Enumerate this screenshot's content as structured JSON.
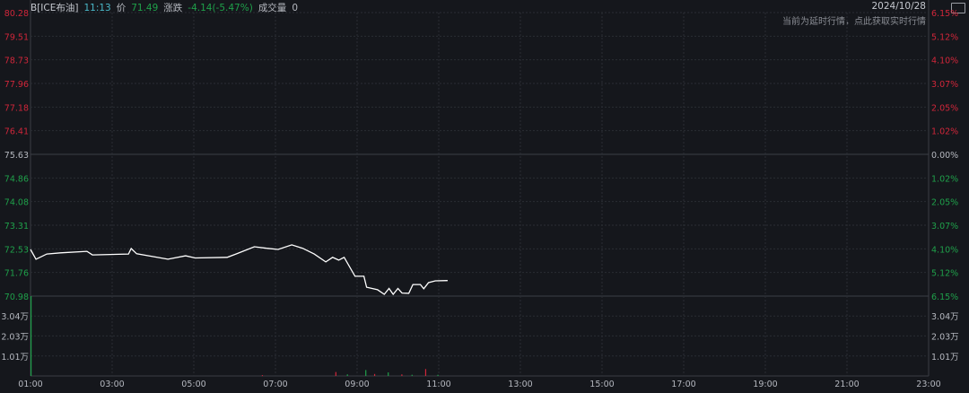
{
  "header": {
    "symbol": "B[ICE布油]",
    "time": "11:13",
    "price_label": "价",
    "price": "71.49",
    "change_label": "涨跌",
    "change": "-4.14(-5.47%)",
    "volume_label": "成交量",
    "volume": "0",
    "date": "2024/10/28",
    "notice": "当前为延时行情，点此获取实时行情"
  },
  "colors": {
    "up": "#d0263a",
    "down": "#1fa04a",
    "neutral": "#b5b8bf",
    "line": "#ffffff",
    "time": "#4ab8c8",
    "grid": "#2a2d33"
  },
  "icons": [
    "monitor-icon"
  ],
  "chart_data": {
    "type": "line",
    "prev_close": 75.63,
    "ylim": [
      70.98,
      80.28
    ],
    "y_ticks": [
      "80.28",
      "79.51",
      "78.73",
      "77.96",
      "77.18",
      "76.41",
      "75.63",
      "74.86",
      "74.08",
      "73.31",
      "72.53",
      "71.76",
      "70.98"
    ],
    "pct_ticks": [
      "6.15%",
      "5.12%",
      "4.10%",
      "3.07%",
      "2.05%",
      "1.02%",
      "0.00%",
      "1.02%",
      "2.05%",
      "3.07%",
      "4.10%",
      "5.12%",
      "6.15%"
    ],
    "x_ticks": [
      "01:00",
      "03:00",
      "05:00",
      "07:00",
      "09:00",
      "11:00",
      "13:00",
      "15:00",
      "17:00",
      "19:00",
      "21:00",
      "23:00"
    ],
    "xlim": [
      "01:00",
      "23:00"
    ],
    "grid": true,
    "series": [
      {
        "x": [
          "01:00",
          "01:08",
          "01:24",
          "01:44",
          "02:23",
          "02:31",
          "03:24",
          "03:28",
          "03:36",
          "04:22",
          "04:48",
          "05:02",
          "05:49",
          "06:02",
          "06:29",
          "06:47",
          "07:04",
          "07:24",
          "07:40",
          "07:57",
          "08:14",
          "08:24",
          "08:33",
          "08:41",
          "08:57",
          "09:10",
          "09:14",
          "09:30",
          "09:40",
          "09:47",
          "09:53",
          "10:00",
          "10:06",
          "10:16",
          "10:22",
          "10:33",
          "10:38",
          "10:45",
          "10:55",
          "11:13"
        ],
        "y": [
          72.51,
          72.19,
          72.36,
          72.4,
          72.45,
          72.33,
          72.36,
          72.54,
          72.37,
          72.19,
          72.3,
          72.23,
          72.25,
          72.36,
          72.6,
          72.55,
          72.51,
          72.66,
          72.55,
          72.36,
          72.1,
          72.25,
          72.16,
          72.25,
          71.63,
          71.63,
          71.27,
          71.19,
          71.04,
          71.23,
          71.04,
          71.23,
          71.08,
          71.07,
          71.36,
          71.36,
          71.22,
          71.42,
          71.48,
          71.49
        ]
      }
    ],
    "volume": {
      "y_ticks": [
        "3.04万",
        "2.03万",
        "1.01万"
      ],
      "ylim": [
        0,
        4.05
      ],
      "bars": [
        {
          "x": "01:00",
          "v": 4.05,
          "dir": "down"
        },
        {
          "x": "06:40",
          "v": 0.04,
          "dir": "up"
        },
        {
          "x": "08:28",
          "v": 0.2,
          "dir": "up"
        },
        {
          "x": "08:45",
          "v": 0.08,
          "dir": "down"
        },
        {
          "x": "09:12",
          "v": 0.3,
          "dir": "down"
        },
        {
          "x": "09:25",
          "v": 0.1,
          "dir": "up"
        },
        {
          "x": "09:45",
          "v": 0.18,
          "dir": "down"
        },
        {
          "x": "10:05",
          "v": 0.08,
          "dir": "up"
        },
        {
          "x": "10:20",
          "v": 0.06,
          "dir": "down"
        },
        {
          "x": "10:40",
          "v": 0.35,
          "dir": "up"
        },
        {
          "x": "10:58",
          "v": 0.06,
          "dir": "down"
        }
      ]
    }
  }
}
